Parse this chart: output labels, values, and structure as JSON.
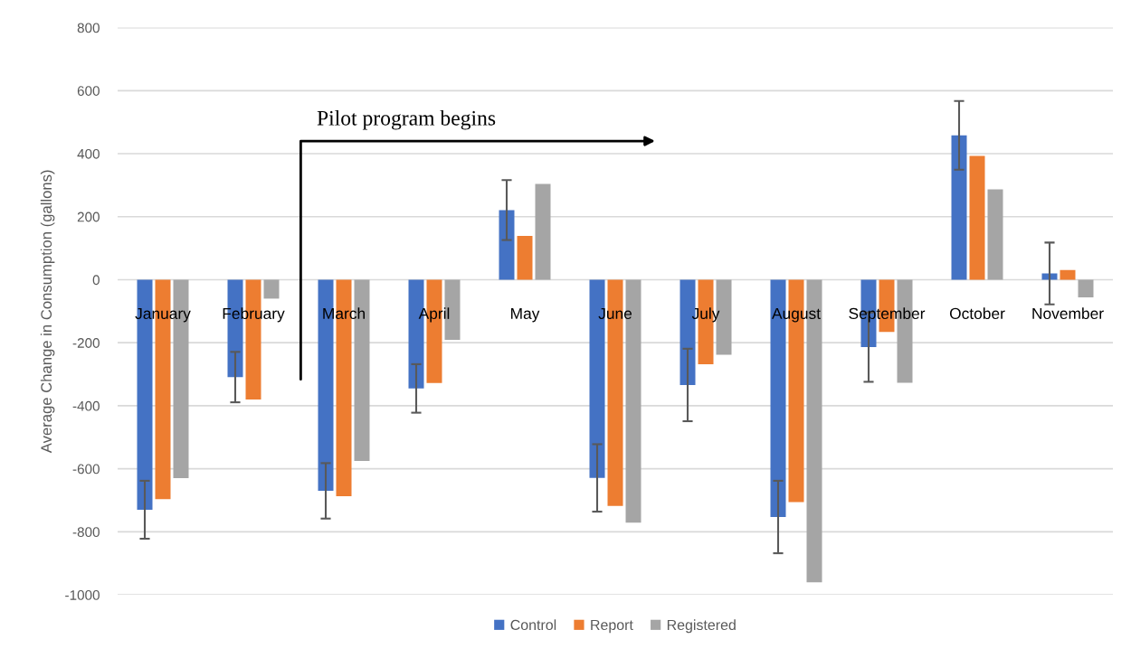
{
  "chart_data": {
    "type": "bar",
    "ylabel": "Average Change in Consumption (gallons)",
    "categories": [
      "January",
      "February",
      "March",
      "April",
      "May",
      "June",
      "July",
      "August",
      "September",
      "October",
      "November"
    ],
    "series": [
      {
        "name": "Control",
        "color": "#4472c4",
        "values": [
          -730,
          -309,
          -670,
          -345,
          221,
          -629,
          -334,
          -753,
          -214,
          458,
          20
        ],
        "errors": [
          92,
          80,
          88,
          77,
          95,
          107,
          115,
          115,
          110,
          109,
          98
        ]
      },
      {
        "name": "Report",
        "color": "#ed7d31",
        "values": [
          -696,
          -380,
          -687,
          -328,
          139,
          -718,
          -268,
          -706,
          -166,
          393,
          31
        ]
      },
      {
        "name": "Registered",
        "color": "#a5a5a5",
        "values": [
          -630,
          -60,
          -575,
          -191,
          304,
          -771,
          -238,
          -960,
          -327,
          287,
          -56
        ]
      }
    ],
    "ylim": [
      -1000,
      800
    ],
    "yticks": [
      -1000,
      -800,
      -600,
      -400,
      -200,
      0,
      200,
      400,
      600,
      800
    ],
    "grid": "y",
    "legend": "bottom",
    "annotations": [
      "Pilot program begins"
    ]
  }
}
